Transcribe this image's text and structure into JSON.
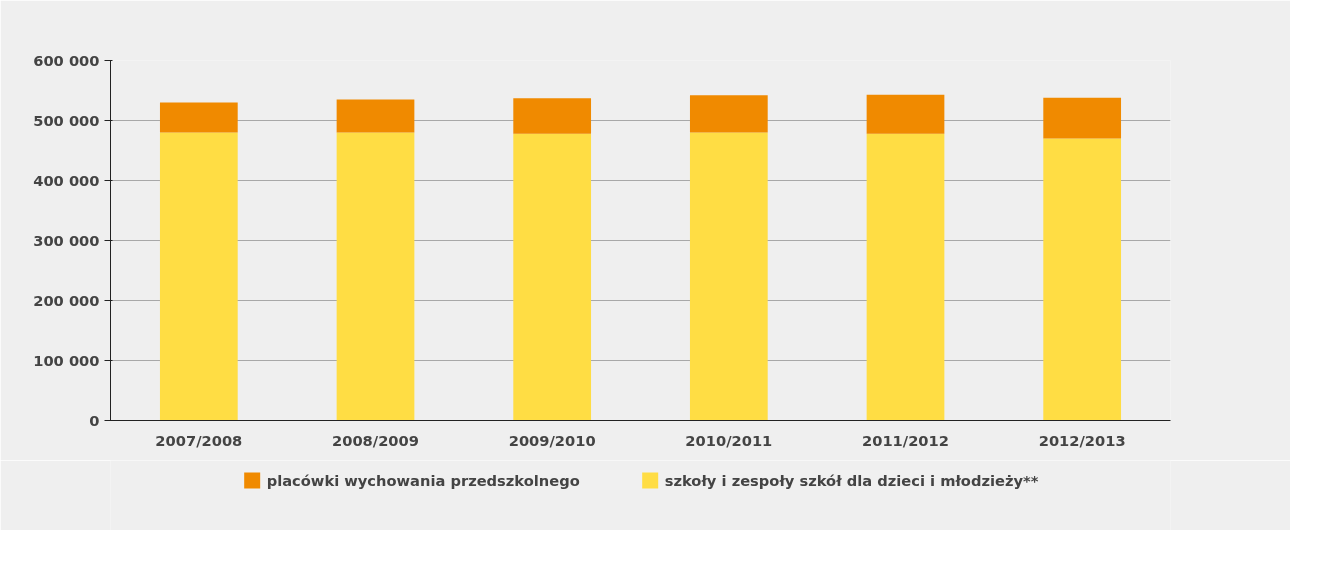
{
  "chart_data": {
    "type": "bar",
    "stacked": true,
    "categories": [
      "2007/2008",
      "2008/2009",
      "2009/2010",
      "2010/2011",
      "2011/2012",
      "2012/2013"
    ],
    "series": [
      {
        "name": "szkoły i zespoły szkół dla dzieci i młodzieży**",
        "color": "#ffdd44",
        "values": [
          480000,
          480000,
          478000,
          480000,
          478000,
          470000
        ]
      },
      {
        "name": "placówki wychowania przedszkolnego",
        "color": "#f08a00",
        "values": [
          50000,
          55000,
          59000,
          62000,
          65000,
          68000
        ]
      }
    ],
    "ylim": [
      0,
      600000
    ],
    "yticks": [
      {
        "value": 0,
        "label": "0"
      },
      {
        "value": 100000,
        "label": "100 000"
      },
      {
        "value": 200000,
        "label": "200 000"
      },
      {
        "value": 300000,
        "label": "300 000"
      },
      {
        "value": 400000,
        "label": "400 000"
      },
      {
        "value": 500000,
        "label": "500 000"
      },
      {
        "value": 600000,
        "label": "600 000"
      }
    ],
    "grid": "y",
    "legend": "bottom"
  }
}
